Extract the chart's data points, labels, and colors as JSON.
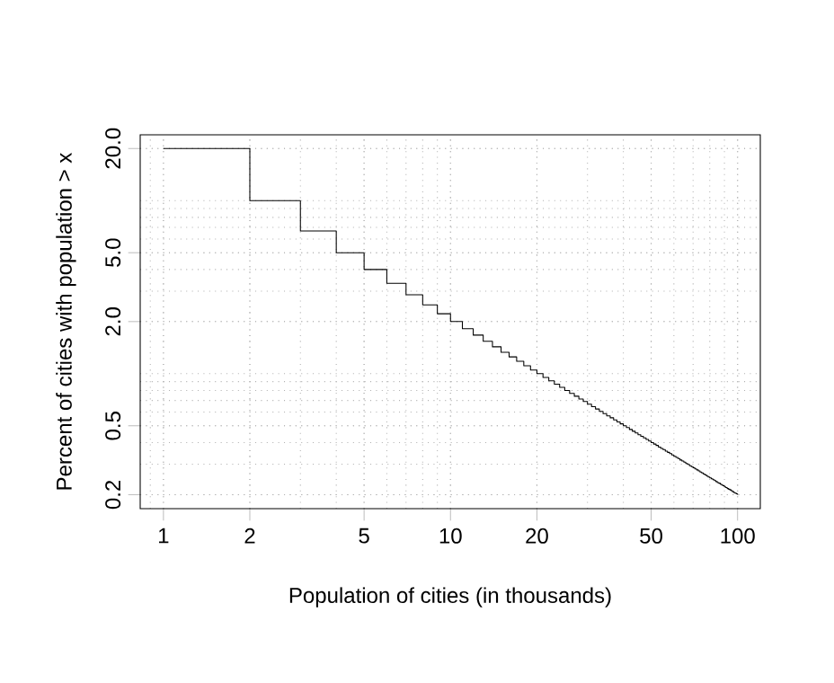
{
  "chart_data": {
    "type": "step",
    "xlabel": "Population of cities (in thousands)",
    "ylabel": "Percent of cities with population > x",
    "x": [
      1,
      2,
      3,
      4,
      5,
      6,
      7,
      8,
      9,
      10,
      11,
      12,
      13,
      14,
      15,
      16,
      17,
      18,
      19,
      20,
      21,
      22,
      23,
      24,
      25,
      26,
      27,
      28,
      29,
      30,
      31,
      32,
      33,
      34,
      35,
      36,
      37,
      38,
      39,
      40,
      41,
      42,
      43,
      44,
      45,
      46,
      47,
      48,
      49,
      50,
      51,
      52,
      53,
      54,
      55,
      56,
      57,
      58,
      59,
      60,
      61,
      62,
      63,
      64,
      65,
      66,
      67,
      68,
      69,
      70,
      71,
      72,
      73,
      74,
      75,
      76,
      77,
      78,
      79,
      80,
      81,
      82,
      83,
      84,
      85,
      86,
      87,
      88,
      89,
      90,
      91,
      92,
      93,
      94,
      95,
      96,
      97,
      98,
      99,
      100
    ],
    "values": [
      20,
      10,
      6.67,
      5,
      4,
      3.33,
      2.86,
      2.5,
      2.22,
      2,
      1.82,
      1.67,
      1.54,
      1.43,
      1.33,
      1.25,
      1.18,
      1.11,
      1.05,
      1,
      0.952,
      0.909,
      0.87,
      0.833,
      0.8,
      0.769,
      0.741,
      0.714,
      0.69,
      0.667,
      0.645,
      0.625,
      0.606,
      0.588,
      0.571,
      0.556,
      0.541,
      0.526,
      0.513,
      0.5,
      0.488,
      0.476,
      0.465,
      0.455,
      0.444,
      0.435,
      0.426,
      0.417,
      0.408,
      0.4,
      0.392,
      0.385,
      0.377,
      0.37,
      0.364,
      0.357,
      0.351,
      0.345,
      0.339,
      0.333,
      0.328,
      0.323,
      0.317,
      0.313,
      0.308,
      0.303,
      0.299,
      0.294,
      0.29,
      0.286,
      0.282,
      0.278,
      0.274,
      0.27,
      0.267,
      0.263,
      0.26,
      0.256,
      0.253,
      0.25,
      0.247,
      0.244,
      0.241,
      0.238,
      0.235,
      0.233,
      0.23,
      0.227,
      0.225,
      0.222,
      0.22,
      0.217,
      0.215,
      0.213,
      0.211,
      0.208,
      0.206,
      0.204,
      0.202,
      0.2
    ],
    "color": "#000000",
    "log": "xy",
    "xlim": [
      0.83,
      120
    ],
    "ylim": [
      0.166,
      24
    ],
    "xticks": [
      1,
      2,
      5,
      10,
      20,
      50,
      100
    ],
    "yticks": [
      {
        "value": 0.2,
        "label": "0.2"
      },
      {
        "value": 0.5,
        "label": "0.5"
      },
      {
        "value": 2,
        "label": "2.0"
      },
      {
        "value": 5,
        "label": "5.0"
      },
      {
        "value": 20,
        "label": "20.0"
      }
    ],
    "grid": true,
    "line_style": "solid",
    "marker": "none"
  }
}
